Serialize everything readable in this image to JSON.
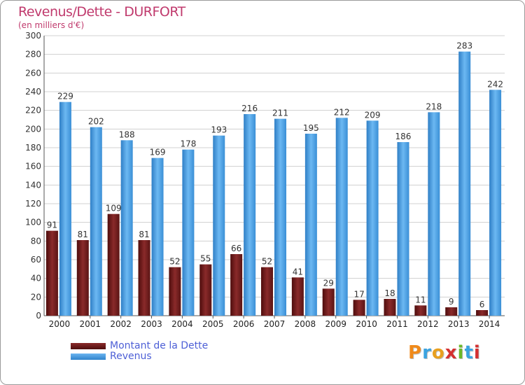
{
  "header": {
    "title": "Revenus/Dette - DURFORT",
    "subtitle": "(en milliers d'€)"
  },
  "legend": {
    "items": [
      {
        "label": "Montant de la Dette",
        "color": "#6b1b1b"
      },
      {
        "label": "Revenus",
        "color": "#4d9fe0"
      }
    ]
  },
  "logo": {
    "text": "Proxiti",
    "colors": [
      "#f08a1a",
      "#3aa3e0",
      "#e8a020",
      "#d43030",
      "#6cb82a",
      "#3aa3e0",
      "#d43030"
    ]
  },
  "chart_data": {
    "type": "bar",
    "title": "Revenus/Dette - DURFORT",
    "subtitle": "(en milliers d'€)",
    "xlabel": "",
    "ylabel": "",
    "categories": [
      "2000",
      "2001",
      "2002",
      "2003",
      "2004",
      "2005",
      "2006",
      "2007",
      "2008",
      "2009",
      "2010",
      "2011",
      "2012",
      "2013",
      "2014"
    ],
    "series": [
      {
        "name": "Montant de la Dette",
        "color": "#6b1b1b",
        "values": [
          91,
          81,
          109,
          81,
          52,
          55,
          66,
          52,
          41,
          29,
          17,
          18,
          11,
          9,
          6
        ]
      },
      {
        "name": "Revenus",
        "color": "#4d9fe0",
        "values": [
          229,
          202,
          188,
          169,
          178,
          193,
          216,
          211,
          195,
          212,
          209,
          186,
          218,
          283,
          242
        ]
      }
    ],
    "ylim": [
      0,
      300
    ],
    "yticks": [
      "0",
      "20",
      "40",
      "60",
      "80",
      "100",
      "120",
      "140",
      "160",
      "180",
      "200",
      "220",
      "240",
      "260",
      "280",
      "300"
    ],
    "grid": true,
    "legend_position": "bottom-left"
  }
}
